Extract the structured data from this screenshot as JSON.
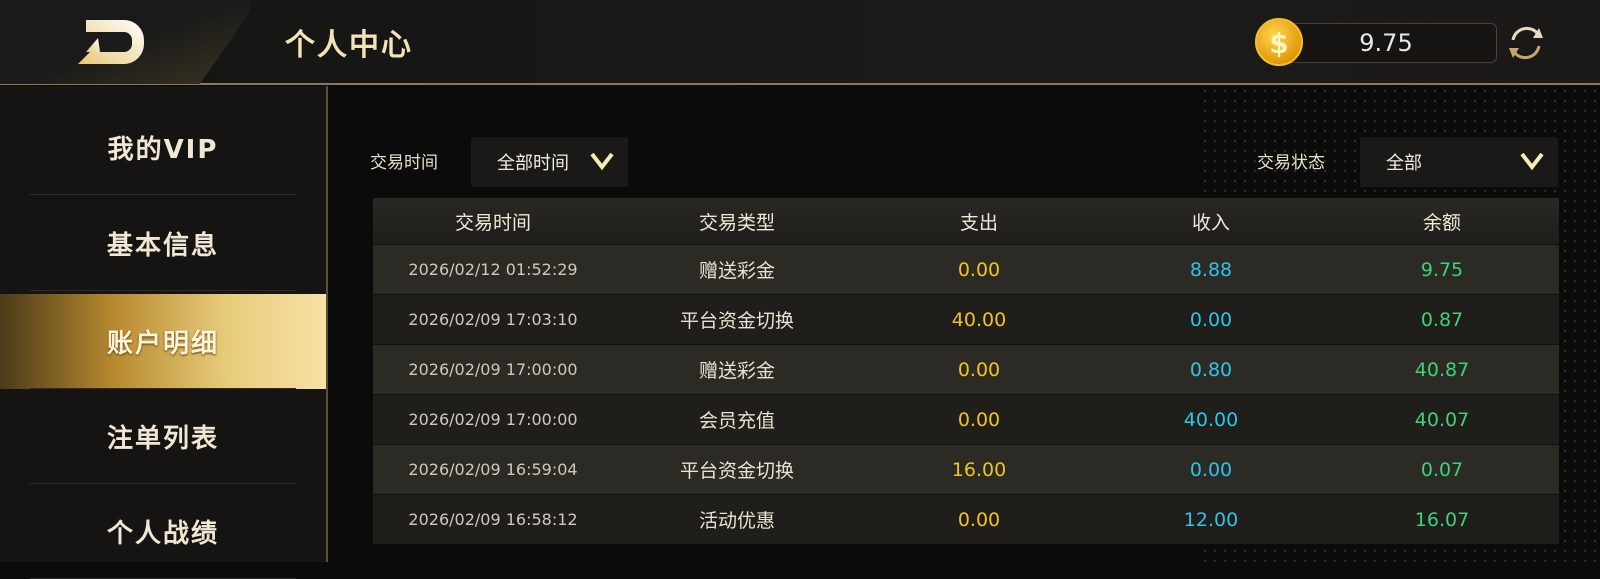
{
  "header": {
    "title": "个人中心",
    "balance": "9.75",
    "coin_icon": "$"
  },
  "sidebar": {
    "items": [
      {
        "label": "我的VIP"
      },
      {
        "label": "基本信息"
      },
      {
        "label": "账户明细",
        "active": true
      },
      {
        "label": "注单列表"
      },
      {
        "label": "个人战绩"
      }
    ]
  },
  "filters": {
    "time_label": "交易时间",
    "time_value": "全部时间",
    "status_label": "交易状态",
    "status_value": "全部"
  },
  "table": {
    "headers": [
      "交易时间",
      "交易类型",
      "支出",
      "收入",
      "余额"
    ],
    "rows": [
      [
        "2026/02/12 01:52:29",
        "赠送彩金",
        "0.00",
        "8.88",
        "9.75"
      ],
      [
        "2026/02/09 17:03:10",
        "平台资金切换",
        "40.00",
        "0.00",
        "0.87"
      ],
      [
        "2026/02/09 17:00:00",
        "赠送彩金",
        "0.00",
        "0.80",
        "40.87"
      ],
      [
        "2026/02/09 17:00:00",
        "会员充值",
        "0.00",
        "40.00",
        "40.07"
      ],
      [
        "2026/02/09 16:59:04",
        "平台资金切换",
        "16.00",
        "0.00",
        "0.07"
      ],
      [
        "2026/02/09 16:58:12",
        "活动优惠",
        "0.00",
        "12.00",
        "16.07"
      ]
    ]
  },
  "colors": {
    "accent": "#d8b86a",
    "expense": "#f2c21f",
    "income": "#2ec4e8",
    "balance": "#3fd279"
  }
}
